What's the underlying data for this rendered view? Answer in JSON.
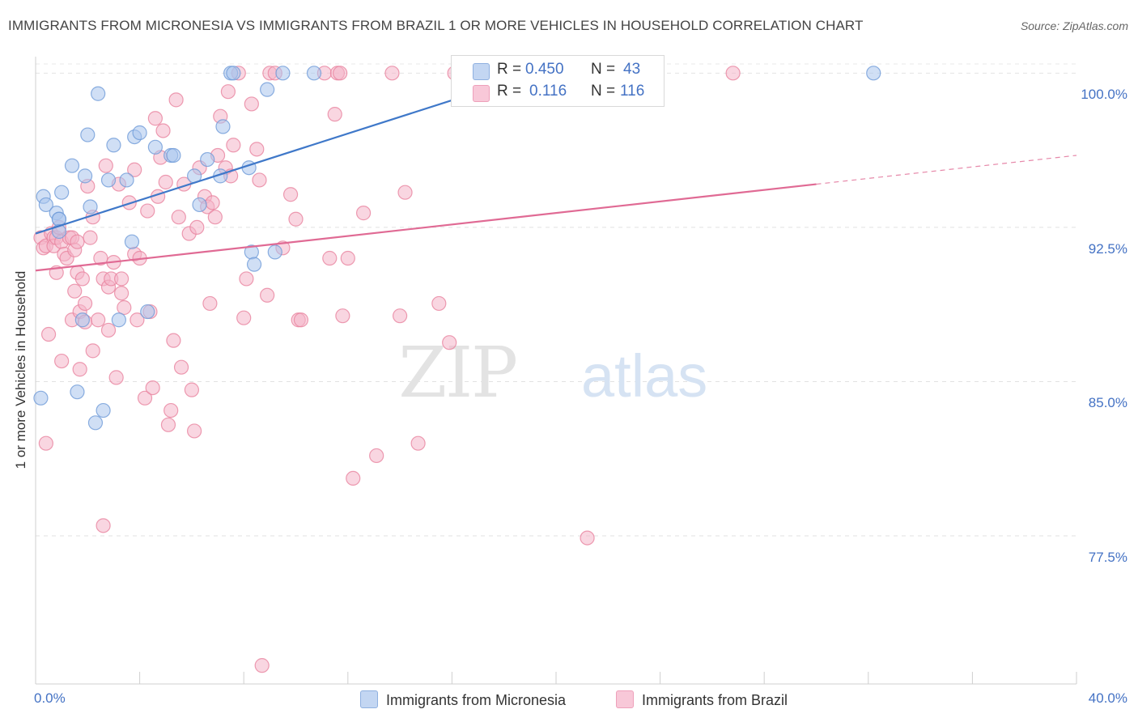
{
  "title": "IMMIGRANTS FROM MICRONESIA VS IMMIGRANTS FROM BRAZIL 1 OR MORE VEHICLES IN HOUSEHOLD CORRELATION CHART",
  "source": "Source: ZipAtlas.com",
  "watermark": {
    "zip": "ZIP",
    "atlas": "atlas"
  },
  "legend": {
    "rows": [
      {
        "r_label": "R = ",
        "r_value": "0.450",
        "n_label": "N = ",
        "n_value": "43",
        "color": "#a9c4ec"
      },
      {
        "r_label": "R = ",
        "r_value": " 0.116",
        "n_label": "N = ",
        "n_value": "116",
        "color": "#f4b4c9"
      }
    ]
  },
  "bottom_legend": [
    "Immigrants from Micronesia",
    "Immigrants from Brazil"
  ],
  "chart_data": {
    "type": "scatter",
    "ylabel": "1 or more Vehicles in Household",
    "xlim": [
      0,
      40
    ],
    "ylim": [
      70.3,
      100.8
    ],
    "y_ticks": [
      {
        "value": 100,
        "label": "100.0%"
      },
      {
        "value": 92.5,
        "label": "92.5%"
      },
      {
        "value": 85,
        "label": "85.0%"
      },
      {
        "value": 77.5,
        "label": "77.5%"
      }
    ],
    "x_tick_labels": {
      "min": "0.0%",
      "max": "40.0%"
    },
    "series": [
      {
        "name": "Immigrants from Micronesia",
        "color": "#a9c4ec",
        "stroke": "#6f9bd8",
        "trend": {
          "x0": 0,
          "y0": 92.2,
          "x1": 20,
          "y1": 100.3,
          "color": "#3f78c9"
        },
        "points": [
          [
            0.2,
            84.2
          ],
          [
            0.3,
            94.0
          ],
          [
            0.4,
            93.6
          ],
          [
            0.8,
            93.2
          ],
          [
            0.9,
            92.9
          ],
          [
            0.9,
            92.9
          ],
          [
            0.9,
            92.3
          ],
          [
            1.0,
            94.2
          ],
          [
            1.4,
            95.5
          ],
          [
            1.6,
            84.5
          ],
          [
            1.8,
            88.0
          ],
          [
            1.9,
            95.0
          ],
          [
            2.0,
            97.0
          ],
          [
            2.1,
            93.5
          ],
          [
            2.3,
            83.0
          ],
          [
            2.4,
            99.0
          ],
          [
            2.6,
            83.6
          ],
          [
            2.8,
            94.8
          ],
          [
            3.0,
            96.5
          ],
          [
            3.2,
            88.0
          ],
          [
            3.5,
            94.8
          ],
          [
            3.7,
            91.8
          ],
          [
            3.8,
            96.9
          ],
          [
            4.0,
            97.1
          ],
          [
            4.3,
            88.4
          ],
          [
            4.6,
            96.4
          ],
          [
            5.2,
            96.0
          ],
          [
            5.3,
            96.0
          ],
          [
            6.1,
            95.0
          ],
          [
            6.3,
            93.6
          ],
          [
            6.6,
            95.8
          ],
          [
            7.1,
            95.0
          ],
          [
            7.2,
            97.4
          ],
          [
            7.5,
            100.0
          ],
          [
            7.6,
            100.0
          ],
          [
            8.2,
            95.4
          ],
          [
            8.3,
            91.3
          ],
          [
            8.4,
            90.7
          ],
          [
            8.9,
            99.2
          ],
          [
            9.2,
            91.3
          ],
          [
            9.5,
            100.0
          ],
          [
            10.7,
            100.0
          ],
          [
            32.2,
            100.0
          ]
        ]
      },
      {
        "name": "Immigrants from Brazil",
        "color": "#f4b4c9",
        "stroke": "#e8839f",
        "trend": {
          "x0": 0,
          "y0": 90.4,
          "x1": 30,
          "y1": 94.6,
          "x2": 40,
          "y2": 96.0,
          "color": "#e06a94"
        },
        "points": [
          [
            0.2,
            92.0
          ],
          [
            0.3,
            91.5
          ],
          [
            0.4,
            82.0
          ],
          [
            0.4,
            91.6
          ],
          [
            0.5,
            87.3
          ],
          [
            0.6,
            92.2
          ],
          [
            0.7,
            92.0
          ],
          [
            0.7,
            91.6
          ],
          [
            0.8,
            90.3
          ],
          [
            0.8,
            92.0
          ],
          [
            0.9,
            92.5
          ],
          [
            1.0,
            91.8
          ],
          [
            1.0,
            86.0
          ],
          [
            1.1,
            91.2
          ],
          [
            1.2,
            91.0
          ],
          [
            1.3,
            92.0
          ],
          [
            1.4,
            92.0
          ],
          [
            1.4,
            88.0
          ],
          [
            1.5,
            91.4
          ],
          [
            1.5,
            89.4
          ],
          [
            1.6,
            91.8
          ],
          [
            1.6,
            90.3
          ],
          [
            1.7,
            88.4
          ],
          [
            1.7,
            85.6
          ],
          [
            1.8,
            90.0
          ],
          [
            1.9,
            87.9
          ],
          [
            1.9,
            88.8
          ],
          [
            2.0,
            94.5
          ],
          [
            2.1,
            92.0
          ],
          [
            2.2,
            86.5
          ],
          [
            2.2,
            93.0
          ],
          [
            2.4,
            88.0
          ],
          [
            2.5,
            91.0
          ],
          [
            2.6,
            90.0
          ],
          [
            2.6,
            78.0
          ],
          [
            2.7,
            95.5
          ],
          [
            2.8,
            89.6
          ],
          [
            2.8,
            87.5
          ],
          [
            2.9,
            90.0
          ],
          [
            3.0,
            90.8
          ],
          [
            3.1,
            85.2
          ],
          [
            3.2,
            94.6
          ],
          [
            3.3,
            89.3
          ],
          [
            3.3,
            90.0
          ],
          [
            3.4,
            88.6
          ],
          [
            3.6,
            93.7
          ],
          [
            3.8,
            95.3
          ],
          [
            3.8,
            91.2
          ],
          [
            3.9,
            88.0
          ],
          [
            4.0,
            91.0
          ],
          [
            4.2,
            84.2
          ],
          [
            4.3,
            93.3
          ],
          [
            4.4,
            88.4
          ],
          [
            4.5,
            84.7
          ],
          [
            4.6,
            97.8
          ],
          [
            4.7,
            94.0
          ],
          [
            4.8,
            95.9
          ],
          [
            4.9,
            97.2
          ],
          [
            5.0,
            94.7
          ],
          [
            5.1,
            82.9
          ],
          [
            5.2,
            83.6
          ],
          [
            5.3,
            87.0
          ],
          [
            5.4,
            98.7
          ],
          [
            5.5,
            93.0
          ],
          [
            5.6,
            85.7
          ],
          [
            5.7,
            94.6
          ],
          [
            5.9,
            92.2
          ],
          [
            6.0,
            84.6
          ],
          [
            6.1,
            82.6
          ],
          [
            6.2,
            92.5
          ],
          [
            6.3,
            95.4
          ],
          [
            6.5,
            94.0
          ],
          [
            6.6,
            93.5
          ],
          [
            6.7,
            88.8
          ],
          [
            6.8,
            93.7
          ],
          [
            6.9,
            93.0
          ],
          [
            7.0,
            96.0
          ],
          [
            7.1,
            97.9
          ],
          [
            7.3,
            95.4
          ],
          [
            7.4,
            99.1
          ],
          [
            7.5,
            95.0
          ],
          [
            7.6,
            96.5
          ],
          [
            7.8,
            100.0
          ],
          [
            8.0,
            88.1
          ],
          [
            8.1,
            90.0
          ],
          [
            8.3,
            98.5
          ],
          [
            8.5,
            96.3
          ],
          [
            8.6,
            94.8
          ],
          [
            8.7,
            71.2
          ],
          [
            8.9,
            89.2
          ],
          [
            9.0,
            100.0
          ],
          [
            9.2,
            100.0
          ],
          [
            9.5,
            91.5
          ],
          [
            9.8,
            94.1
          ],
          [
            10.0,
            92.9
          ],
          [
            10.1,
            88.0
          ],
          [
            10.2,
            88.0
          ],
          [
            11.1,
            100.0
          ],
          [
            11.3,
            91.0
          ],
          [
            11.5,
            98.0
          ],
          [
            11.6,
            100.0
          ],
          [
            11.7,
            100.0
          ],
          [
            11.8,
            88.2
          ],
          [
            12.0,
            91.0
          ],
          [
            12.2,
            80.3
          ],
          [
            12.6,
            93.2
          ],
          [
            13.1,
            81.4
          ],
          [
            13.7,
            100.0
          ],
          [
            14.0,
            88.2
          ],
          [
            14.2,
            94.2
          ],
          [
            14.7,
            82.0
          ],
          [
            15.5,
            88.8
          ],
          [
            15.9,
            86.9
          ],
          [
            16.1,
            100.0
          ],
          [
            16.7,
            100.0
          ],
          [
            21.2,
            77.4
          ],
          [
            26.8,
            100.0
          ]
        ]
      }
    ]
  }
}
